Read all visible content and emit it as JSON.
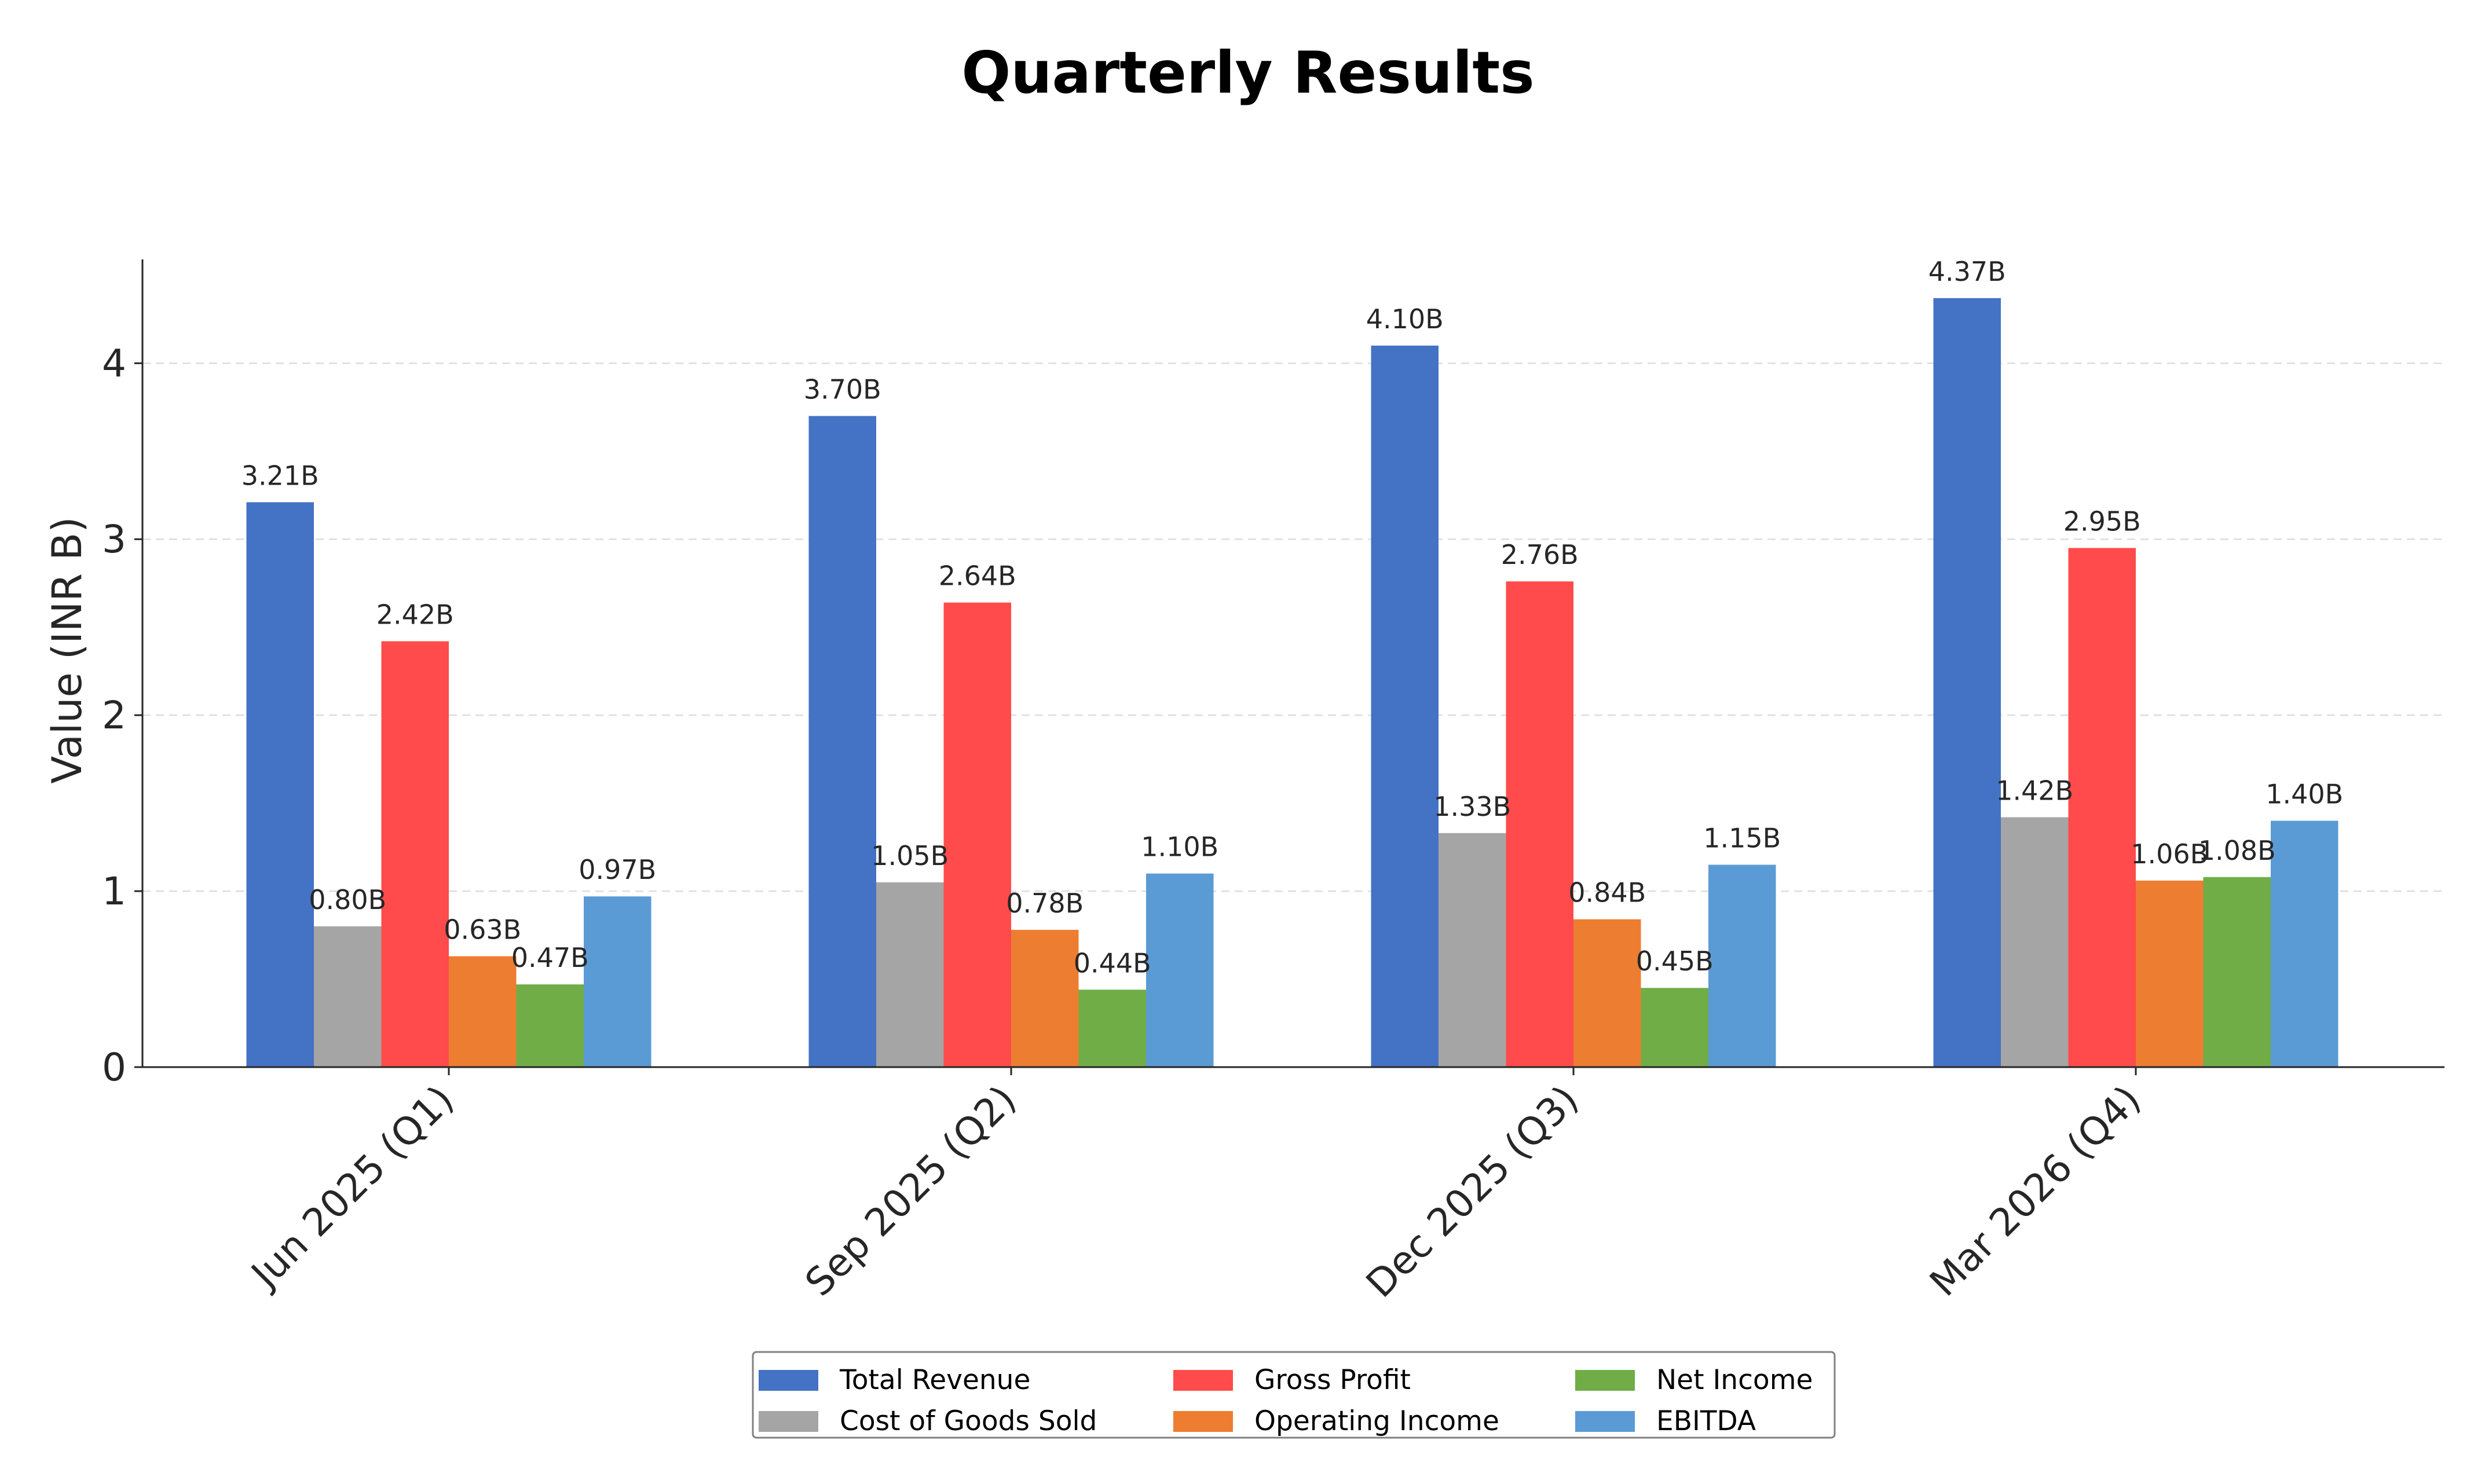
{
  "chart_data": {
    "type": "bar",
    "title": "Quarterly Results",
    "xlabel": "",
    "ylabel": "Value (INR B)",
    "ylim": [
      0,
      4.59
    ],
    "yticks": [
      "0",
      "1",
      "2",
      "3",
      "4"
    ],
    "grid": "y-dashed",
    "legend_position": "bottom-center",
    "categories": [
      "Jun 2025 (Q1)",
      "Sep 2025 (Q2)",
      "Dec 2025 (Q3)",
      "Mar 2026 (Q4)"
    ],
    "series": [
      {
        "name": "Total Revenue",
        "color": "#4472c4",
        "values": [
          3.21,
          3.7,
          4.1,
          4.37
        ],
        "labels": [
          "3.21B",
          "3.70B",
          "4.10B",
          "4.37B"
        ]
      },
      {
        "name": "Cost of Goods Sold",
        "color": "#a5a5a5",
        "values": [
          0.8,
          1.05,
          1.33,
          1.42
        ],
        "labels": [
          "0.80B",
          "1.05B",
          "1.33B",
          "1.42B"
        ]
      },
      {
        "name": "Gross Profit",
        "color": "#ff4b4b",
        "values": [
          2.42,
          2.64,
          2.76,
          2.95
        ],
        "labels": [
          "2.42B",
          "2.64B",
          "2.76B",
          "2.95B"
        ]
      },
      {
        "name": "Operating Income",
        "color": "#ed7d31",
        "values": [
          0.63,
          0.78,
          0.84,
          1.06
        ],
        "labels": [
          "0.63B",
          "0.78B",
          "0.84B",
          "1.06B"
        ]
      },
      {
        "name": "Net Income",
        "color": "#70ad47",
        "values": [
          0.47,
          0.44,
          0.45,
          1.08
        ],
        "labels": [
          "0.47B",
          "0.44B",
          "0.45B",
          "1.08B"
        ]
      },
      {
        "name": "EBITDA",
        "color": "#5b9bd5",
        "values": [
          0.97,
          1.1,
          1.15,
          1.4
        ],
        "labels": [
          "0.97B",
          "1.10B",
          "1.15B",
          "1.40B"
        ]
      }
    ]
  }
}
